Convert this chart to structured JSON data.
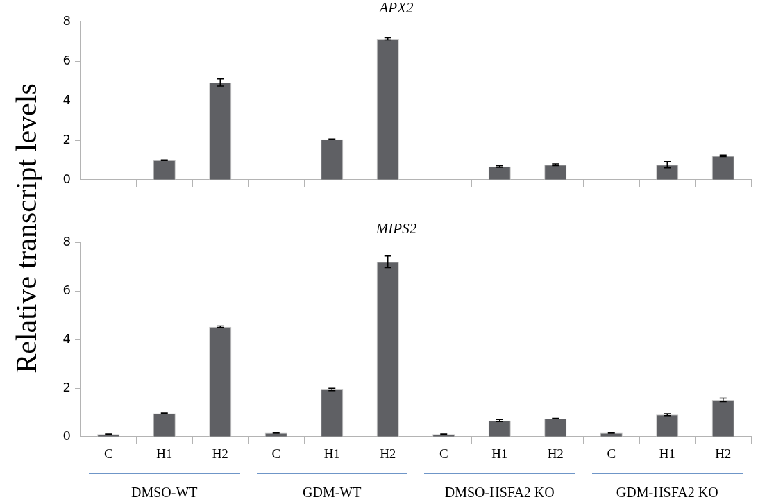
{
  "chart_data": [
    {
      "type": "bar",
      "title": "APX2",
      "ylabel": "Relative transcript levels",
      "categories": [
        null,
        null,
        null,
        null,
        null,
        null,
        null,
        null,
        null,
        null,
        null,
        null
      ],
      "values": [
        0,
        1.0,
        4.92,
        0,
        2.05,
        7.13,
        0,
        0.68,
        0.77,
        0,
        0.77,
        1.22
      ],
      "errors": [
        null,
        0.02,
        0.18,
        null,
        0.02,
        0.05,
        null,
        0.04,
        0.04,
        null,
        0.16,
        0.04
      ],
      "color": "#5f6064",
      "ylim": [
        0,
        8
      ],
      "yticks": [
        0,
        2,
        4,
        6,
        8
      ],
      "grid": false,
      "legend": false,
      "tick_labels": "y"
    },
    {
      "type": "bar",
      "title": "MIPS2",
      "categories": [
        "C",
        "H1",
        "H2",
        "C",
        "H1",
        "H2",
        "C",
        "H1",
        "H2",
        "C",
        "H1",
        "H2"
      ],
      "values": [
        0.11,
        0.96,
        4.53,
        0.16,
        1.95,
        7.2,
        0.11,
        0.67,
        0.75,
        0.16,
        0.91,
        1.52
      ],
      "errors": [
        0.01,
        0.02,
        0.03,
        0.01,
        0.05,
        0.24,
        0.01,
        0.04,
        0.01,
        0.01,
        0.04,
        0.07
      ],
      "color": "#5f6064",
      "ylim": [
        0,
        8
      ],
      "yticks": [
        0,
        2,
        4,
        6,
        8
      ],
      "grid": false,
      "legend": false,
      "annotations": [
        "DMSO-WT",
        "GDM-WT",
        "DMSO-HSFA2 KO",
        "GDM-HSFA2 KO"
      ]
    }
  ]
}
